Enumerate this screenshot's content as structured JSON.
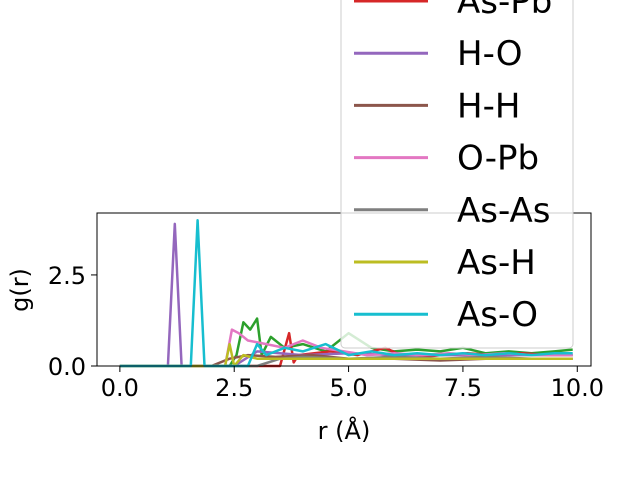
{
  "chart_data": {
    "type": "line",
    "xlabel": "r (Å)",
    "ylabel": "g(r)",
    "xlim": [
      -0.5,
      10.3
    ],
    "ylim": [
      0,
      4.2
    ],
    "xticks": [
      "0.0",
      "2.5",
      "5.0",
      "7.5",
      "10.0"
    ],
    "xtick_values": [
      0,
      2.5,
      5,
      7.5,
      10
    ],
    "yticks": [
      "0.0",
      "2.5"
    ],
    "ytick_values": [
      0,
      2.5
    ],
    "grid": false,
    "legend_position": "upper right, extending above the axes",
    "series": [
      {
        "name": "As-Pb",
        "color": "#d62728",
        "x": [
          0,
          3.5,
          3.7,
          3.8,
          3.9,
          4.6,
          5.2,
          5.8,
          6.3,
          7.0,
          7.6,
          8.2,
          8.8,
          9.4,
          9.9
        ],
        "y": [
          0,
          0,
          0.9,
          0.1,
          0.3,
          0.4,
          0.3,
          0.5,
          0.2,
          0.3,
          0.35,
          0.3,
          0.35,
          0.3,
          0.3
        ]
      },
      {
        "name": "H-O",
        "color": "#9467bd",
        "x": [
          0,
          1.05,
          1.2,
          1.35,
          2.5,
          3.0,
          4.0,
          5.0,
          6.0,
          7.0,
          8.0,
          9.0,
          9.9
        ],
        "y": [
          0,
          0,
          3.9,
          0,
          0,
          0.4,
          0.3,
          0.35,
          0.3,
          0.3,
          0.3,
          0.3,
          0.3
        ]
      },
      {
        "name": "H-H",
        "color": "#8c564b",
        "x": [
          0,
          2.0,
          2.4,
          2.8,
          3.4,
          4.2,
          5.0,
          6.0,
          7.0,
          8.0,
          9.0,
          9.9
        ],
        "y": [
          0,
          0,
          0.2,
          0.3,
          0.25,
          0.3,
          0.2,
          0.2,
          0.15,
          0.2,
          0.2,
          0.2
        ]
      },
      {
        "name": "O-Pb",
        "color": "#e377c2",
        "x": [
          0,
          2.3,
          2.45,
          2.6,
          2.8,
          3.2,
          3.6,
          4.0,
          4.4,
          4.9,
          5.4,
          6.0,
          6.6,
          7.2,
          7.8,
          8.4,
          9.0,
          9.6,
          9.9
        ],
        "y": [
          0,
          0,
          1.0,
          0.9,
          0.7,
          0.6,
          0.5,
          0.7,
          0.5,
          0.4,
          0.3,
          0.35,
          0.3,
          0.35,
          0.3,
          0.35,
          0.3,
          0.3,
          0.3
        ]
      },
      {
        "name": "As-As",
        "color": "#7f7f7f",
        "x": [
          0,
          3.0,
          3.5,
          4.0,
          5.0,
          6.0,
          7.0,
          8.0,
          9.0,
          9.9
        ],
        "y": [
          0,
          0,
          0.2,
          0.25,
          0.2,
          0.25,
          0.2,
          0.25,
          0.2,
          0.2
        ]
      },
      {
        "name": "As-H",
        "color": "#bcbd22",
        "x": [
          0,
          2.3,
          2.4,
          2.5,
          2.7,
          3.0,
          3.5,
          4.0,
          5.0,
          6.0,
          7.0,
          8.0,
          9.0,
          9.9
        ],
        "y": [
          0,
          0,
          0.6,
          0.0,
          0.3,
          0.2,
          0.2,
          0.2,
          0.2,
          0.2,
          0.2,
          0.2,
          0.2,
          0.2
        ]
      },
      {
        "name": "As-O",
        "color": "#17becf",
        "x": [
          0,
          1.55,
          1.7,
          1.85,
          2.8,
          3.0,
          3.2,
          3.6,
          4.0,
          4.5,
          5.0,
          5.5,
          6.0,
          6.5,
          7.0,
          7.5,
          8.0,
          8.5,
          9.0,
          9.5,
          9.9
        ],
        "y": [
          0,
          0,
          4.0,
          0,
          0,
          0.6,
          0.3,
          0.5,
          0.4,
          0.6,
          0.3,
          0.4,
          0.3,
          0.35,
          0.3,
          0.35,
          0.3,
          0.35,
          0.3,
          0.35,
          0.35
        ]
      }
    ],
    "extra_line": {
      "color": "#2ca02c",
      "x": [
        0,
        2.4,
        2.55,
        2.7,
        2.85,
        3.0,
        3.1,
        3.3,
        3.6,
        4.0,
        4.5,
        5.0,
        5.5,
        6.0,
        6.5,
        7.0,
        7.5,
        8.0,
        8.5,
        9.0,
        9.5,
        9.9
      ],
      "y": [
        0,
        0,
        0.3,
        1.2,
        1.0,
        1.3,
        0.3,
        0.8,
        0.5,
        0.6,
        0.4,
        0.9,
        0.5,
        0.4,
        0.45,
        0.4,
        0.5,
        0.35,
        0.4,
        0.35,
        0.4,
        0.45
      ]
    }
  }
}
